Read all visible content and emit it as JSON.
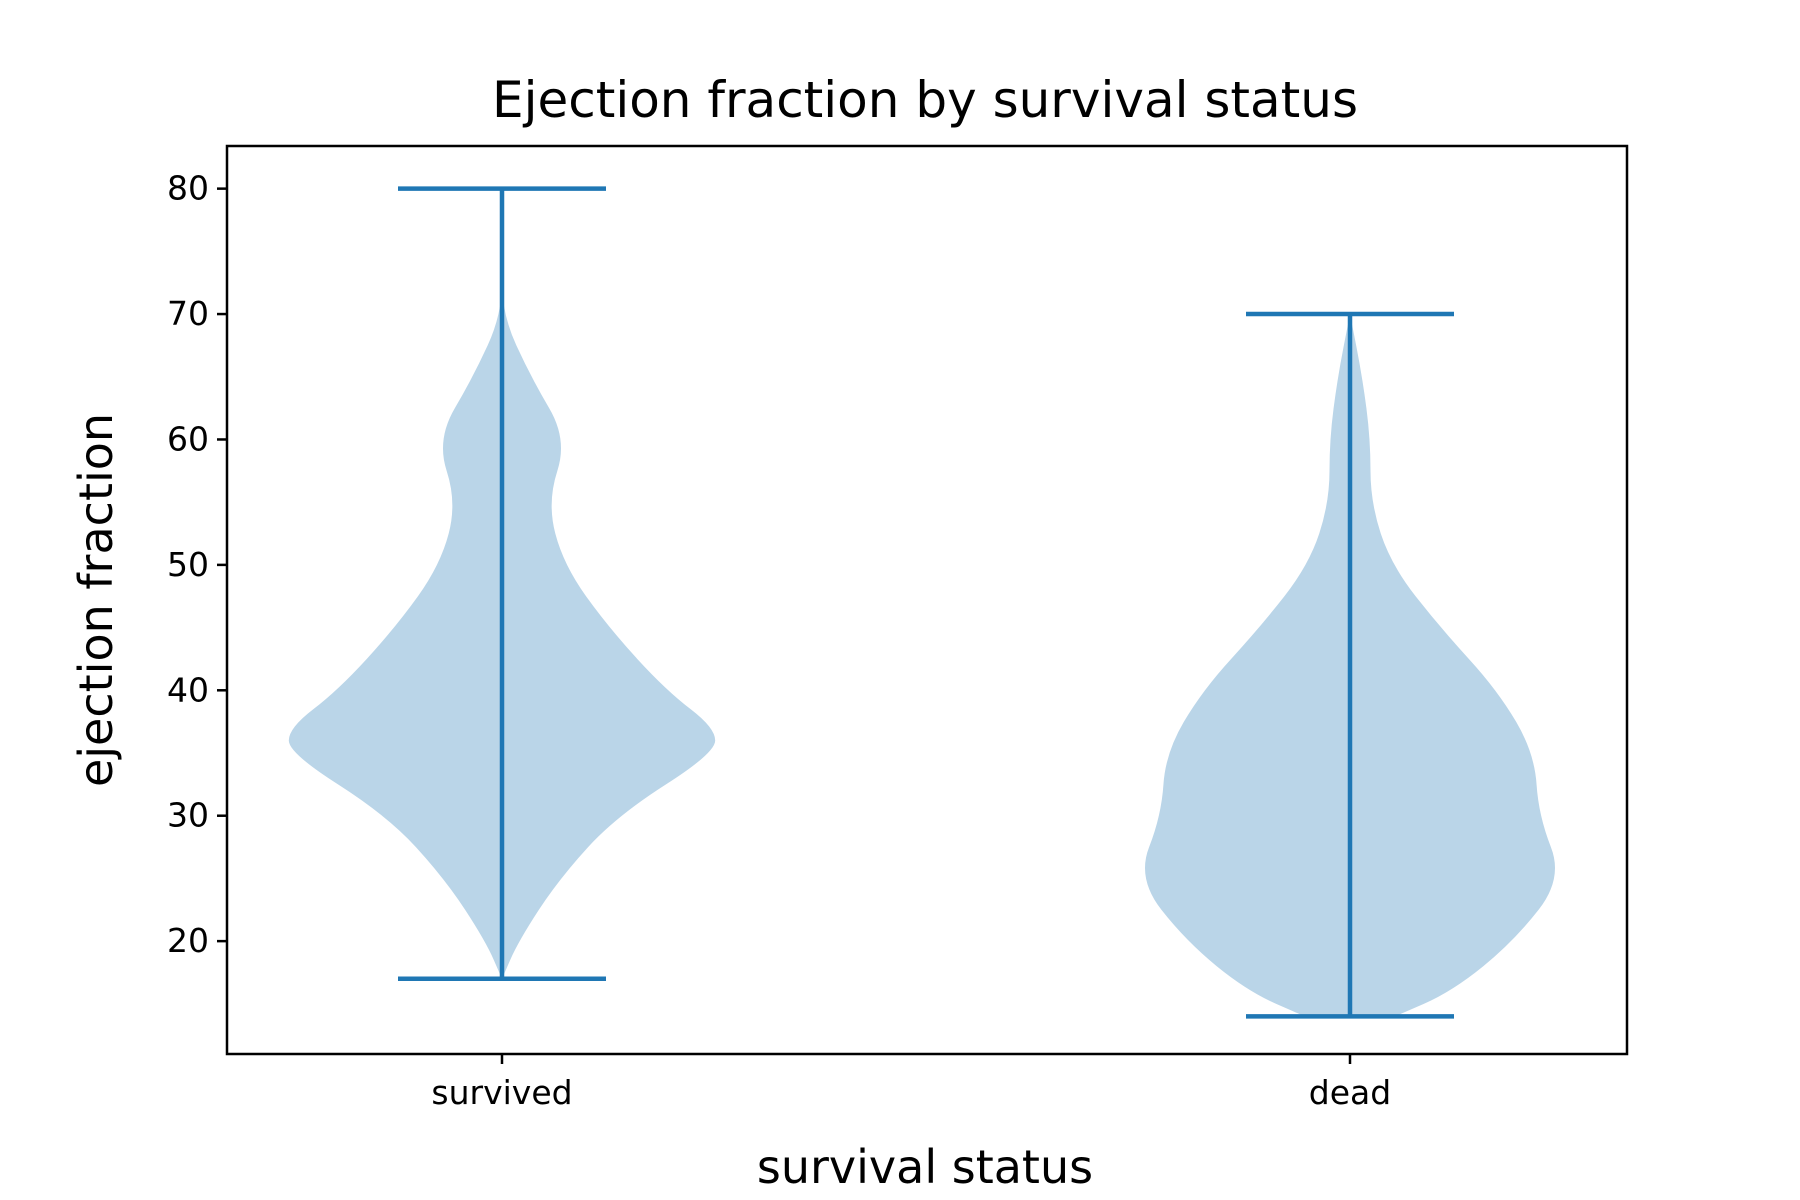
{
  "chart_data": {
    "type": "violin",
    "title": "Ejection fraction by survival status",
    "xlabel": "survival status",
    "ylabel": "ejection fraction",
    "categories": [
      "survived",
      "dead"
    ],
    "ylim": [
      11,
      83.4
    ],
    "yticks": [
      20,
      30,
      40,
      50,
      60,
      70,
      80
    ],
    "grid": false,
    "legend": "none",
    "colors": {
      "body_fill": "#bad5e8",
      "lines": "#1f77b4",
      "axes": "#000000"
    },
    "series": [
      {
        "name": "survived",
        "min": 17,
        "max": 80,
        "density_profile": [
          [
            17,
            0.0
          ],
          [
            20,
            0.04
          ],
          [
            25,
            0.14
          ],
          [
            30,
            0.28
          ],
          [
            35,
            0.52
          ],
          [
            37,
            0.52
          ],
          [
            40,
            0.4
          ],
          [
            45,
            0.26
          ],
          [
            50,
            0.15
          ],
          [
            55,
            0.11
          ],
          [
            60,
            0.16
          ],
          [
            65,
            0.07
          ],
          [
            70,
            0.0
          ],
          [
            75,
            0.0
          ],
          [
            80,
            0.0
          ]
        ]
      },
      {
        "name": "dead",
        "min": 14,
        "max": 70,
        "density_profile": [
          [
            14,
            0.11
          ],
          [
            16,
            0.25
          ],
          [
            20,
            0.4
          ],
          [
            25,
            0.52
          ],
          [
            30,
            0.46
          ],
          [
            35,
            0.45
          ],
          [
            40,
            0.36
          ],
          [
            45,
            0.22
          ],
          [
            50,
            0.1
          ],
          [
            55,
            0.05
          ],
          [
            60,
            0.05
          ],
          [
            65,
            0.03
          ],
          [
            70,
            0.0
          ]
        ]
      }
    ]
  }
}
